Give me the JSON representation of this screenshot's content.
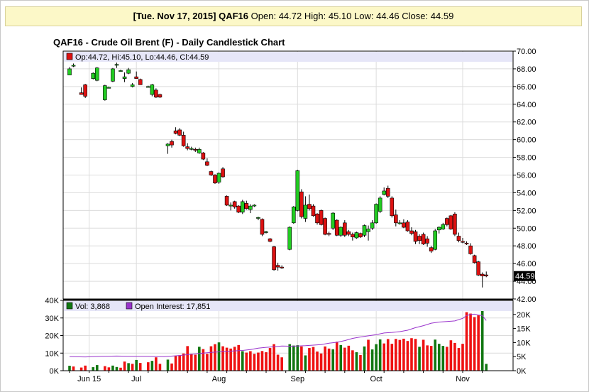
{
  "summary": {
    "date": "[Tue. Nov 17, 2015]",
    "symbol": "QAF16",
    "open_label": "Open:",
    "open": "44.72",
    "high_label": "High:",
    "high": "45.10",
    "low_label": "Low:",
    "low": "44.46",
    "close_label": "Close:",
    "close": "44.59"
  },
  "chart_data": {
    "type": "candlestick",
    "title": "QAF16 - Crude Oil Brent (F) - Daily Candlestick Chart",
    "price_legend": "Op:44.72, Hi:45.10, Lo:44.46, Cl:44.59",
    "last_price_tag": "44.59",
    "price_axis": {
      "min": 42,
      "max": 70,
      "ticks": [
        "70.00",
        "68.00",
        "66.00",
        "64.00",
        "62.00",
        "60.00",
        "58.00",
        "56.00",
        "54.00",
        "52.00",
        "50.00",
        "48.00",
        "46.00",
        "44.00",
        "42.00"
      ]
    },
    "volume_legend": {
      "vol": "Vol: 3,868",
      "oi": "Open Interest: 17,851"
    },
    "volume_axis_left": {
      "min": 0,
      "max": 40000,
      "ticks": [
        "40K",
        "30K",
        "20K",
        "10K",
        "0K"
      ]
    },
    "oi_axis_right": {
      "min": 0,
      "max": 25000,
      "ticks": [
        "20K",
        "15K",
        "10K",
        "5K",
        "0K"
      ]
    },
    "x_labels": [
      "Jun 15",
      "Jul",
      "Aug",
      "Sep",
      "Oct",
      "Nov"
    ],
    "x_label_positions_day": [
      5,
      17,
      38,
      58,
      78,
      100
    ],
    "candles": [
      [
        0,
        67.3,
        68.2,
        67.4,
        68.0
      ],
      [
        1,
        68.3,
        68.6,
        68.2,
        68.4
      ],
      [
        3,
        65.3,
        65.9,
        65.1,
        65.1
      ],
      [
        4,
        66.2,
        66.3,
        64.7,
        64.9
      ],
      [
        6,
        66.9,
        67.6,
        66.8,
        67.5
      ],
      [
        7,
        66.7,
        68.2,
        66.6,
        68.1
      ],
      [
        9,
        64.5,
        66.2,
        64.4,
        66.1
      ],
      [
        10,
        65.9,
        66.0,
        65.8,
        65.9
      ],
      [
        11,
        66.6,
        68.1,
        66.5,
        68.0
      ],
      [
        12,
        68.4,
        68.7,
        68.1,
        68.5
      ],
      [
        13,
        67.8,
        67.9,
        67.7,
        67.8
      ],
      [
        14,
        66.9,
        67.6,
        66.5,
        67.1
      ],
      [
        15,
        67.5,
        68.1,
        67.4,
        67.9
      ],
      [
        16,
        66.0,
        66.4,
        65.9,
        66.2
      ],
      [
        17,
        67.1,
        67.7,
        66.9,
        66.9
      ],
      [
        18,
        66.8,
        66.9,
        66.2,
        66.2
      ],
      [
        20,
        66.0,
        66.1,
        65.9,
        66.0
      ],
      [
        21,
        65.1,
        66.3,
        64.9,
        66.2
      ],
      [
        22,
        65.6,
        65.8,
        64.7,
        64.8
      ],
      [
        23,
        65.1,
        65.2,
        64.7,
        64.8
      ],
      [
        25,
        59.3,
        59.6,
        58.4,
        59.5
      ],
      [
        26,
        59.8,
        60.0,
        59.1,
        59.4
      ],
      [
        27,
        61.0,
        61.4,
        60.6,
        60.7
      ],
      [
        28,
        61.1,
        61.3,
        60.4,
        60.5
      ],
      [
        29,
        60.5,
        60.9,
        59.2,
        59.3
      ],
      [
        30,
        59.2,
        59.6,
        58.8,
        59.0
      ],
      [
        31,
        58.9,
        59.2,
        58.8,
        59.0
      ],
      [
        32,
        58.9,
        59.1,
        58.6,
        58.8
      ],
      [
        33,
        58.5,
        59.1,
        58.4,
        58.9
      ],
      [
        34,
        58.5,
        58.6,
        57.7,
        57.8
      ],
      [
        35,
        57.5,
        57.9,
        57.0,
        57.1
      ],
      [
        36,
        56.4,
        56.5,
        55.9,
        56.0
      ],
      [
        37,
        56.0,
        56.1,
        55.0,
        55.1
      ],
      [
        38,
        55.2,
        56.3,
        55.0,
        56.2
      ],
      [
        39,
        56.7,
        56.9,
        55.7,
        55.8
      ],
      [
        40,
        53.6,
        53.7,
        52.5,
        52.6
      ],
      [
        41,
        52.5,
        52.9,
        52.0,
        52.6
      ],
      [
        42,
        53.0,
        53.1,
        52.2,
        52.4
      ],
      [
        43,
        52.5,
        52.6,
        51.7,
        51.8
      ],
      [
        44,
        51.8,
        53.2,
        51.6,
        53.0
      ],
      [
        45,
        52.8,
        53.1,
        52.1,
        52.2
      ],
      [
        46,
        52.1,
        52.7,
        51.7,
        52.5
      ],
      [
        47,
        52.6,
        52.7,
        52.4,
        52.6
      ],
      [
        48,
        51.2,
        51.3,
        50.9,
        51.2
      ],
      [
        49,
        51.0,
        51.1,
        49.1,
        49.3
      ],
      [
        50,
        49.6,
        49.7,
        49.4,
        49.6
      ],
      [
        51,
        48.8,
        48.9,
        48.4,
        48.5
      ],
      [
        52,
        47.9,
        48.0,
        45.2,
        45.3
      ],
      [
        53,
        45.8,
        46.1,
        45.2,
        45.6
      ],
      [
        54,
        45.6,
        45.8,
        45.4,
        45.5
      ],
      [
        56,
        47.6,
        50.2,
        47.5,
        50.1
      ],
      [
        57,
        50.6,
        52.5,
        50.5,
        52.4
      ],
      [
        58,
        52.0,
        56.6,
        51.9,
        56.5
      ],
      [
        59,
        54.1,
        54.4,
        51.1,
        51.3
      ],
      [
        60,
        51.1,
        53.6,
        50.7,
        52.6
      ],
      [
        61,
        52.7,
        53.8,
        52.0,
        52.2
      ],
      [
        62,
        52.5,
        52.7,
        51.3,
        51.4
      ],
      [
        63,
        51.6,
        51.7,
        50.4,
        50.6
      ],
      [
        64,
        52.0,
        52.1,
        50.3,
        50.4
      ],
      [
        65,
        51.1,
        51.2,
        49.2,
        49.3
      ],
      [
        66,
        49.4,
        49.6,
        49.1,
        49.3
      ],
      [
        67,
        50.0,
        51.8,
        49.8,
        51.7
      ],
      [
        68,
        50.9,
        51.0,
        49.1,
        49.2
      ],
      [
        69,
        49.2,
        50.2,
        49.0,
        50.1
      ],
      [
        70,
        50.6,
        50.9,
        49.0,
        49.2
      ],
      [
        71,
        49.6,
        49.8,
        49.1,
        49.3
      ],
      [
        72,
        49.3,
        49.5,
        48.6,
        49.0
      ],
      [
        73,
        48.9,
        49.6,
        48.8,
        49.5
      ],
      [
        74,
        49.4,
        49.5,
        48.9,
        49.0
      ],
      [
        75,
        49.2,
        50.4,
        49.0,
        50.3
      ],
      [
        76,
        49.6,
        50.3,
        48.6,
        49.9
      ],
      [
        77,
        50.0,
        50.9,
        49.8,
        50.6
      ],
      [
        78,
        50.6,
        52.8,
        50.5,
        52.7
      ],
      [
        79,
        51.9,
        53.6,
        51.7,
        53.4
      ],
      [
        80,
        53.8,
        54.6,
        53.7,
        54.2
      ],
      [
        81,
        54.5,
        54.8,
        53.4,
        53.6
      ],
      [
        82,
        53.4,
        53.6,
        51.2,
        51.4
      ],
      [
        83,
        51.5,
        52.1,
        50.2,
        50.6
      ],
      [
        84,
        50.6,
        50.9,
        50.4,
        50.6
      ],
      [
        85,
        50.6,
        51.0,
        50.0,
        50.1
      ],
      [
        86,
        50.7,
        50.9,
        49.6,
        49.7
      ],
      [
        87,
        49.7,
        50.1,
        49.2,
        49.4
      ],
      [
        88,
        49.6,
        49.8,
        48.2,
        48.5
      ],
      [
        89,
        49.1,
        49.3,
        48.2,
        48.6
      ],
      [
        90,
        49.3,
        49.5,
        48.1,
        48.2
      ],
      [
        91,
        48.8,
        49.1,
        47.9,
        48.3
      ],
      [
        92,
        47.8,
        48.0,
        47.2,
        47.4
      ],
      [
        93,
        47.6,
        49.9,
        47.5,
        49.7
      ],
      [
        94,
        49.8,
        50.2,
        49.4,
        50.1
      ],
      [
        95,
        49.9,
        50.6,
        49.8,
        50.4
      ],
      [
        96,
        51.1,
        51.2,
        50.2,
        50.4
      ],
      [
        97,
        51.4,
        51.5,
        49.8,
        49.9
      ],
      [
        98,
        51.6,
        51.8,
        49.1,
        49.3
      ],
      [
        99,
        49.1,
        49.5,
        48.4,
        48.6
      ],
      [
        100,
        48.5,
        48.9,
        48.3,
        48.4
      ],
      [
        101,
        48.3,
        48.5,
        48.1,
        48.2
      ],
      [
        102,
        48.0,
        48.3,
        47.0,
        47.1
      ],
      [
        103,
        46.9,
        47.0,
        46.0,
        46.1
      ],
      [
        104,
        46.2,
        46.3,
        44.6,
        44.7
      ],
      [
        105,
        44.8,
        45.0,
        43.3,
        44.6
      ],
      [
        106,
        44.72,
        45.1,
        44.46,
        44.59
      ]
    ],
    "volume": [
      [
        0,
        2800,
        "u"
      ],
      [
        1,
        2400,
        "d"
      ],
      [
        3,
        1800,
        "d"
      ],
      [
        4,
        2900,
        "d"
      ],
      [
        6,
        2000,
        "u"
      ],
      [
        7,
        3200,
        "u"
      ],
      [
        9,
        2600,
        "d"
      ],
      [
        10,
        1900,
        "d"
      ],
      [
        11,
        2900,
        "u"
      ],
      [
        12,
        2100,
        "u"
      ],
      [
        13,
        1700,
        "d"
      ],
      [
        14,
        5200,
        "d"
      ],
      [
        15,
        4300,
        "u"
      ],
      [
        16,
        3900,
        "d"
      ],
      [
        17,
        6100,
        "u"
      ],
      [
        18,
        4400,
        "d"
      ],
      [
        20,
        4800,
        "d"
      ],
      [
        21,
        5600,
        "u"
      ],
      [
        22,
        7600,
        "d"
      ],
      [
        23,
        3900,
        "d"
      ],
      [
        25,
        6300,
        "u"
      ],
      [
        26,
        4100,
        "d"
      ],
      [
        27,
        8300,
        "d"
      ],
      [
        28,
        8800,
        "d"
      ],
      [
        29,
        9800,
        "d"
      ],
      [
        30,
        14000,
        "d"
      ],
      [
        31,
        9600,
        "d"
      ],
      [
        32,
        9100,
        "d"
      ],
      [
        33,
        13600,
        "u"
      ],
      [
        34,
        12300,
        "d"
      ],
      [
        35,
        9600,
        "d"
      ],
      [
        36,
        13900,
        "d"
      ],
      [
        37,
        15100,
        "d"
      ],
      [
        38,
        16100,
        "u"
      ],
      [
        39,
        13900,
        "d"
      ],
      [
        40,
        13100,
        "d"
      ],
      [
        41,
        12600,
        "d"
      ],
      [
        42,
        13600,
        "d"
      ],
      [
        43,
        14600,
        "d"
      ],
      [
        44,
        11100,
        "u"
      ],
      [
        45,
        10300,
        "d"
      ],
      [
        46,
        11100,
        "d"
      ],
      [
        47,
        9600,
        "d"
      ],
      [
        48,
        10300,
        "d"
      ],
      [
        49,
        11200,
        "d"
      ],
      [
        50,
        10500,
        "d"
      ],
      [
        51,
        12900,
        "d"
      ],
      [
        52,
        15100,
        "d"
      ],
      [
        53,
        9100,
        "d"
      ],
      [
        54,
        7600,
        "d"
      ],
      [
        56,
        15100,
        "u"
      ],
      [
        57,
        14300,
        "u"
      ],
      [
        58,
        14500,
        "u"
      ],
      [
        59,
        13800,
        "d"
      ],
      [
        60,
        8700,
        "u"
      ],
      [
        61,
        12900,
        "d"
      ],
      [
        62,
        13500,
        "d"
      ],
      [
        63,
        10900,
        "d"
      ],
      [
        64,
        9800,
        "d"
      ],
      [
        65,
        13800,
        "d"
      ],
      [
        66,
        12600,
        "d"
      ],
      [
        67,
        12200,
        "u"
      ],
      [
        68,
        16500,
        "d"
      ],
      [
        69,
        14600,
        "u"
      ],
      [
        70,
        13100,
        "d"
      ],
      [
        71,
        14200,
        "d"
      ],
      [
        72,
        11600,
        "d"
      ],
      [
        73,
        10500,
        "u"
      ],
      [
        74,
        8900,
        "d"
      ],
      [
        75,
        13800,
        "u"
      ],
      [
        76,
        17600,
        "d"
      ],
      [
        77,
        12100,
        "u"
      ],
      [
        78,
        15100,
        "u"
      ],
      [
        79,
        17800,
        "u"
      ],
      [
        80,
        15500,
        "d"
      ],
      [
        81,
        18000,
        "d"
      ],
      [
        82,
        15300,
        "d"
      ],
      [
        83,
        18100,
        "d"
      ],
      [
        84,
        17500,
        "d"
      ],
      [
        85,
        18200,
        "d"
      ],
      [
        86,
        16900,
        "d"
      ],
      [
        87,
        18500,
        "d"
      ],
      [
        88,
        18100,
        "d"
      ],
      [
        89,
        13600,
        "u"
      ],
      [
        90,
        17600,
        "d"
      ],
      [
        91,
        14400,
        "d"
      ],
      [
        92,
        14100,
        "d"
      ],
      [
        93,
        17700,
        "u"
      ],
      [
        94,
        15300,
        "u"
      ],
      [
        95,
        14100,
        "u"
      ],
      [
        96,
        13600,
        "d"
      ],
      [
        97,
        17300,
        "d"
      ],
      [
        98,
        15800,
        "d"
      ],
      [
        99,
        12900,
        "d"
      ],
      [
        100,
        15300,
        "d"
      ],
      [
        101,
        33300,
        "d"
      ],
      [
        102,
        32500,
        "d"
      ],
      [
        103,
        30500,
        "d"
      ],
      [
        104,
        31500,
        "d"
      ],
      [
        105,
        35700,
        "u"
      ],
      [
        106,
        3868,
        "u"
      ]
    ],
    "open_interest": [
      [
        0,
        5000
      ],
      [
        4,
        4900
      ],
      [
        8,
        5100
      ],
      [
        12,
        5200
      ],
      [
        16,
        5100
      ],
      [
        20,
        5100
      ],
      [
        24,
        5000
      ],
      [
        28,
        5400
      ],
      [
        32,
        6000
      ],
      [
        36,
        6500
      ],
      [
        40,
        6900
      ],
      [
        44,
        7200
      ],
      [
        46,
        7500
      ],
      [
        48,
        8000
      ],
      [
        50,
        8300
      ],
      [
        52,
        8500
      ],
      [
        54,
        8800
      ],
      [
        56,
        8700
      ],
      [
        58,
        8800
      ],
      [
        60,
        8900
      ],
      [
        62,
        9100
      ],
      [
        64,
        9300
      ],
      [
        66,
        9800
      ],
      [
        68,
        10100
      ],
      [
        70,
        10700
      ],
      [
        72,
        11500
      ],
      [
        74,
        12000
      ],
      [
        76,
        12400
      ],
      [
        78,
        12800
      ],
      [
        80,
        13400
      ],
      [
        82,
        13600
      ],
      [
        84,
        13900
      ],
      [
        86,
        14400
      ],
      [
        88,
        15300
      ],
      [
        90,
        16000
      ],
      [
        92,
        16900
      ],
      [
        94,
        17300
      ],
      [
        96,
        17500
      ],
      [
        98,
        17700
      ],
      [
        100,
        18600
      ],
      [
        101,
        19600
      ],
      [
        102,
        20000
      ],
      [
        103,
        20100
      ],
      [
        104,
        19800
      ],
      [
        105,
        19600
      ],
      [
        106,
        17851
      ]
    ],
    "colors": {
      "up": "#22cc22",
      "down": "#dd1111",
      "vol_up": "#117711",
      "vol_down": "#ee1111",
      "oi": "#9933cc",
      "legend_bg": "#e6e6f8",
      "grid": "#dcdcdc"
    }
  }
}
